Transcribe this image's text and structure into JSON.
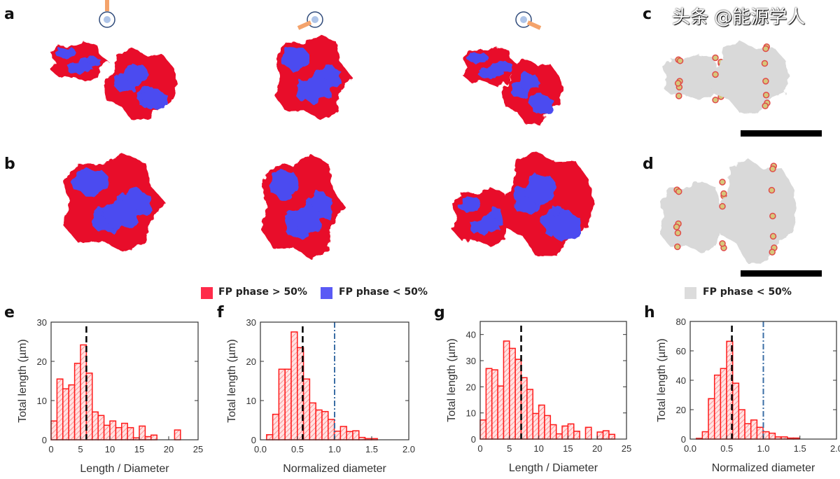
{
  "panel_labels": {
    "a": "a",
    "b": "b",
    "c": "c",
    "d": "d",
    "e": "e",
    "f": "f",
    "g": "g",
    "h": "h"
  },
  "legend": {
    "items": [
      {
        "label": "FP phase > 50%",
        "color": "#ff2b4a"
      },
      {
        "label": "FP phase < 50%",
        "color": "#5a5af5"
      },
      {
        "label": "FP phase < 50%",
        "color": "#dcdcdc"
      }
    ]
  },
  "colors": {
    "red_phase": "#e8102a",
    "blue_phase": "#4b4bf0",
    "bar_edge": "#ff1a1a",
    "bar_fill": "#ffd6d6",
    "median_line": "#000000",
    "reference_line": "#3b6ea5"
  },
  "watermark": "头条 @能源学人",
  "chart_data": [
    {
      "panel": "e",
      "type": "bar",
      "xlabel": "Length / Diameter",
      "ylabel": "Total length (µm)",
      "xlim": [
        0,
        25
      ],
      "ylim": [
        0,
        30
      ],
      "xticks": [
        "0",
        "5",
        "10",
        "15",
        "20",
        "25"
      ],
      "yticks": [
        "0",
        "10",
        "20",
        "30"
      ],
      "bin_start": 0,
      "bin_width": 1,
      "values": [
        4.8,
        15.5,
        13,
        14,
        19.5,
        24.2,
        17,
        7.1,
        6.2,
        3.7,
        4.8,
        3.1,
        4.2,
        3.1,
        0.5,
        3.5,
        0.8,
        1.2,
        0,
        0,
        0,
        2.5
      ],
      "median_line": 6
    },
    {
      "panel": "f",
      "type": "bar",
      "xlabel": "Normalized diameter",
      "ylabel": "Total length (µm)",
      "xlim": [
        0,
        2
      ],
      "ylim": [
        0,
        30
      ],
      "xticks": [
        "0.0",
        "0.5",
        "1.0",
        "1.5",
        "2.0"
      ],
      "yticks": [
        "0",
        "10",
        "20",
        "30"
      ],
      "bin_start": 0.083,
      "bin_width": 0.083,
      "values": [
        1.3,
        6.5,
        18,
        18,
        27.5,
        23.5,
        15.5,
        9.4,
        7.6,
        7.2,
        5.2,
        2.2,
        3.4,
        2.1,
        2.3,
        0.6,
        0.3,
        0.3
      ],
      "median_line": 0.57,
      "reference_line": 1.0
    },
    {
      "panel": "g",
      "type": "bar",
      "xlabel": "Length / Diameter",
      "ylabel": "Total length (µm)",
      "xlim": [
        0,
        25
      ],
      "ylim": [
        0,
        45
      ],
      "xticks": [
        "0",
        "5",
        "10",
        "15",
        "20",
        "25"
      ],
      "yticks": [
        "0",
        "10",
        "20",
        "30",
        "40"
      ],
      "bin_start": 0,
      "bin_width": 1,
      "values": [
        7.3,
        27,
        26.5,
        20.3,
        37.5,
        34.7,
        30.5,
        23.5,
        19,
        9.8,
        13,
        9,
        5.5,
        2,
        5,
        5.8,
        3,
        0,
        4.5,
        0,
        2.7,
        3.2,
        1.8
      ],
      "median_line": 7
    },
    {
      "panel": "h",
      "type": "bar",
      "xlabel": "Normalized diameter",
      "ylabel": "Total length (µm)",
      "xlim": [
        0,
        2
      ],
      "ylim": [
        0,
        80
      ],
      "xticks": [
        "0.0",
        "0.5",
        "1.0",
        "1.5",
        "2.0"
      ],
      "yticks": [
        "0",
        "20",
        "40",
        "60",
        "80"
      ],
      "bin_start": 0.083,
      "bin_width": 0.083,
      "values": [
        0.5,
        5,
        27.5,
        43.5,
        48,
        66.5,
        38,
        20,
        10.5,
        13,
        8,
        5,
        4,
        1.5,
        1.5,
        0.7,
        0.7
      ],
      "median_line": 0.57,
      "reference_line": 1.0
    }
  ]
}
